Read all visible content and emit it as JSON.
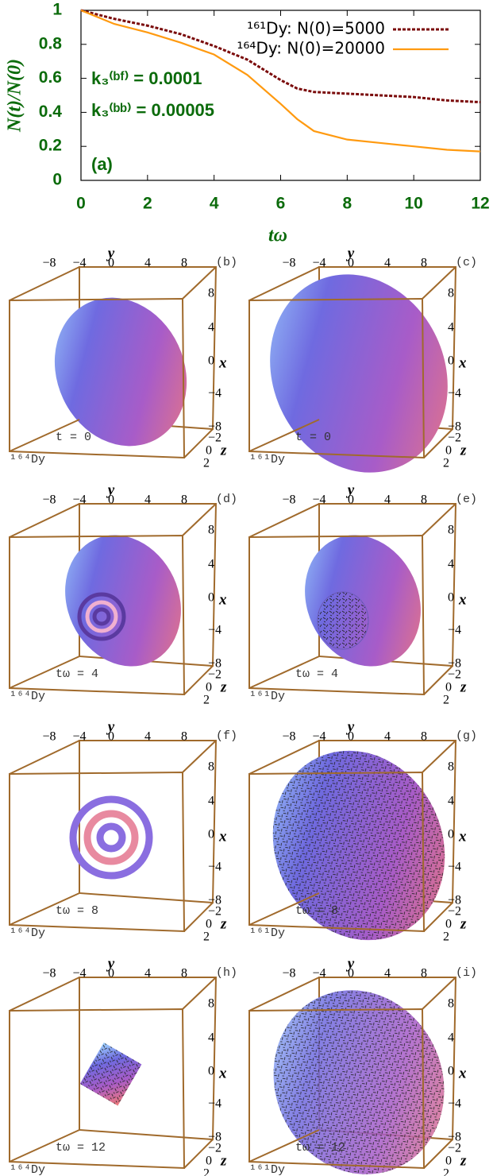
{
  "chart_data": {
    "type": "line",
    "x": [
      0,
      1,
      2,
      3,
      4,
      5,
      6,
      6.5,
      7,
      8,
      9,
      10,
      11,
      12
    ],
    "series": [
      {
        "name": "¹⁶¹Dy: N(0)=5000",
        "color": "#7a0a0a",
        "linestyle": "dashed",
        "values": [
          1,
          0.95,
          0.91,
          0.86,
          0.79,
          0.71,
          0.59,
          0.54,
          0.52,
          0.51,
          0.5,
          0.49,
          0.47,
          0.46
        ]
      },
      {
        "name": "¹⁶⁴Dy: N(0)=20000",
        "color": "#ff9a10",
        "linestyle": "solid",
        "values": [
          1,
          0.92,
          0.87,
          0.81,
          0.74,
          0.62,
          0.45,
          0.36,
          0.29,
          0.24,
          0.22,
          0.2,
          0.18,
          0.17
        ]
      }
    ],
    "xlabel": "tω",
    "ylabel": "N(t)/N(0)",
    "xlim": [
      0,
      12
    ],
    "xticks": [
      0,
      2,
      4,
      6,
      8,
      10,
      12
    ],
    "ylim": [
      0,
      1
    ],
    "yticks": [
      0,
      0.2,
      0.4,
      0.6,
      0.8,
      1
    ],
    "legend": "upper right",
    "annotations": [
      "k₃⁽ᵇᶠ⁾ = 0.0001",
      "k₃⁽ᵇᵇ⁾ = 0.00005",
      "(a)"
    ]
  },
  "axes": {
    "y_name": "y",
    "x_name": "x",
    "z_name": "z",
    "top_ticks": [
      "−8",
      "−4",
      "0",
      "4",
      "8"
    ],
    "right_ticks": [
      "8",
      "4",
      "0",
      "−4",
      "−8"
    ],
    "z_ticks": [
      "−2",
      "0",
      "2"
    ]
  },
  "panels": [
    {
      "letter": "(b)",
      "time": "t = 0",
      "isotope": "¹⁶⁴Dy"
    },
    {
      "letter": "(c)",
      "time": "t = 0",
      "isotope": "¹⁶¹Dy"
    },
    {
      "letter": "(d)",
      "time": "tω = 4",
      "isotope": "¹⁶⁴Dy"
    },
    {
      "letter": "(e)",
      "time": "tω = 4",
      "isotope": "¹⁶¹Dy"
    },
    {
      "letter": "(f)",
      "time": "tω = 8",
      "isotope": "¹⁶⁴Dy"
    },
    {
      "letter": "(g)",
      "time": "tω = 8",
      "isotope": "¹⁶¹Dy"
    },
    {
      "letter": "(h)",
      "time": "tω = 12",
      "isotope": "¹⁶⁴Dy"
    },
    {
      "letter": "(i)",
      "time": "tω = 12",
      "isotope": "¹⁶¹Dy"
    }
  ]
}
